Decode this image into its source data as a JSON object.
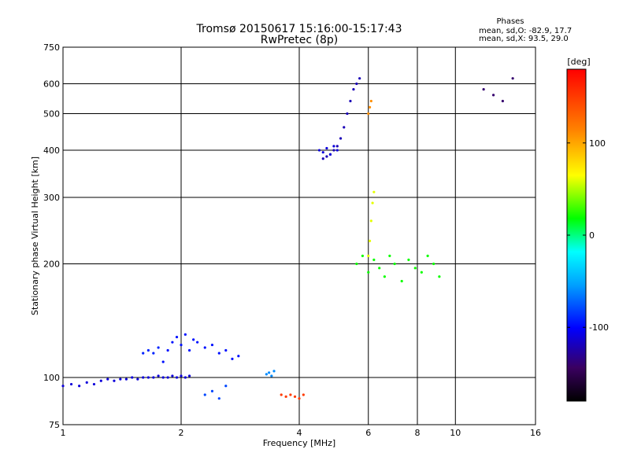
{
  "chart_data": {
    "type": "scatter",
    "title_line1": "Tromsø 20150617 15:16:00-15:17:43",
    "title_line2": "RwPretec (8p)",
    "stats": {
      "label": "Phases",
      "line_o": "mean, sd,O: -82.9, 17.7",
      "line_x": "mean, sd,X:  93.5, 29.0"
    },
    "xlabel": "Frequency [MHz]",
    "ylabel": "Stationary phase Virtual Height [km]",
    "xscale": "log",
    "yscale": "log",
    "xlim": [
      1,
      16
    ],
    "ylim": [
      75,
      750
    ],
    "xticks": [
      1,
      2,
      4,
      6,
      8,
      10,
      16
    ],
    "xtick_labels": [
      "1",
      "2",
      "4",
      "6",
      "8",
      "10",
      "16"
    ],
    "yticks": [
      75,
      100,
      200,
      300,
      400,
      500,
      600,
      750
    ],
    "ytick_labels": [
      "75",
      "100",
      "200",
      "300",
      "400",
      "500",
      "600",
      "750"
    ],
    "grid": true,
    "colorbar": {
      "label": "[deg]",
      "range": [
        -180,
        180
      ],
      "ticks": [
        100,
        0,
        -100
      ],
      "tick_labels": [
        "100",
        "0",
        "-100"
      ]
    },
    "traces": [
      {
        "name": "",
        "phase": -110,
        "x": [
          1.0,
          1.05,
          1.1,
          1.15,
          1.2,
          1.25,
          1.3,
          1.35,
          1.4,
          1.45,
          1.5,
          1.55,
          1.6,
          1.65,
          1.7,
          1.75,
          1.8,
          1.85,
          1.9,
          1.95,
          2.0,
          2.05,
          2.1
        ],
        "y": [
          95,
          96,
          95,
          97,
          96,
          98,
          99,
          98,
          99,
          99,
          100,
          99,
          100,
          100,
          100,
          101,
          100,
          100,
          101,
          100,
          101,
          100,
          101
        ]
      },
      {
        "name": "",
        "phase": -95,
        "x": [
          1.8,
          1.85,
          1.9,
          1.95,
          2.0,
          2.05,
          2.1,
          2.15,
          2.2,
          2.3,
          2.4,
          2.5,
          2.6,
          2.7,
          2.8
        ],
        "y": [
          110,
          118,
          124,
          128,
          122,
          130,
          118,
          126,
          124,
          120,
          122,
          116,
          118,
          112,
          114
        ]
      },
      {
        "name": "",
        "phase": -90,
        "x": [
          1.6,
          1.65,
          1.7,
          1.75
        ],
        "y": [
          116,
          118,
          116,
          120
        ]
      },
      {
        "name": "",
        "phase": -80,
        "x": [
          2.3,
          2.4,
          2.5,
          2.6
        ],
        "y": [
          90,
          92,
          88,
          95
        ]
      },
      {
        "name": "",
        "phase": -120,
        "x": [
          4.6,
          4.7,
          4.8,
          4.9,
          5.0,
          5.1,
          5.2,
          5.3,
          5.4,
          5.5,
          5.6,
          5.7
        ],
        "y": [
          380,
          385,
          390,
          400,
          410,
          430,
          460,
          500,
          540,
          580,
          600,
          620
        ]
      },
      {
        "name": "",
        "phase": -110,
        "x": [
          4.5,
          4.6,
          4.7,
          4.8,
          4.9,
          5.0
        ],
        "y": [
          400,
          395,
          405,
          390,
          410,
          400
        ]
      },
      {
        "name": "",
        "phase": -60,
        "x": [
          3.3,
          3.35,
          3.4,
          3.45
        ],
        "y": [
          102,
          103,
          101,
          104
        ]
      },
      {
        "name": "",
        "phase": 20,
        "x": [
          5.6,
          5.8,
          6.0,
          6.2,
          6.4,
          6.6,
          6.8,
          7.0,
          7.3,
          7.6,
          7.9,
          8.2,
          8.5,
          8.8,
          9.1
        ],
        "y": [
          200,
          210,
          190,
          205,
          195,
          185,
          210,
          200,
          180,
          205,
          195,
          190,
          210,
          200,
          185
        ]
      },
      {
        "name": "",
        "phase": 60,
        "x": [
          6.0,
          6.05,
          6.1,
          6.15,
          6.2
        ],
        "y": [
          210,
          230,
          260,
          290,
          310
        ]
      },
      {
        "name": "",
        "phase": 150,
        "x": [
          3.6,
          3.7,
          3.8,
          3.9,
          4.0,
          4.1
        ],
        "y": [
          90,
          89,
          90,
          89,
          88,
          90
        ]
      },
      {
        "name": "",
        "phase": 110,
        "x": [
          6.0,
          6.05,
          6.1
        ],
        "y": [
          500,
          520,
          540
        ]
      },
      {
        "name": "",
        "phase": -140,
        "x": [
          11.8,
          12.5,
          13.2,
          14.0
        ],
        "y": [
          580,
          560,
          540,
          620
        ]
      }
    ]
  }
}
